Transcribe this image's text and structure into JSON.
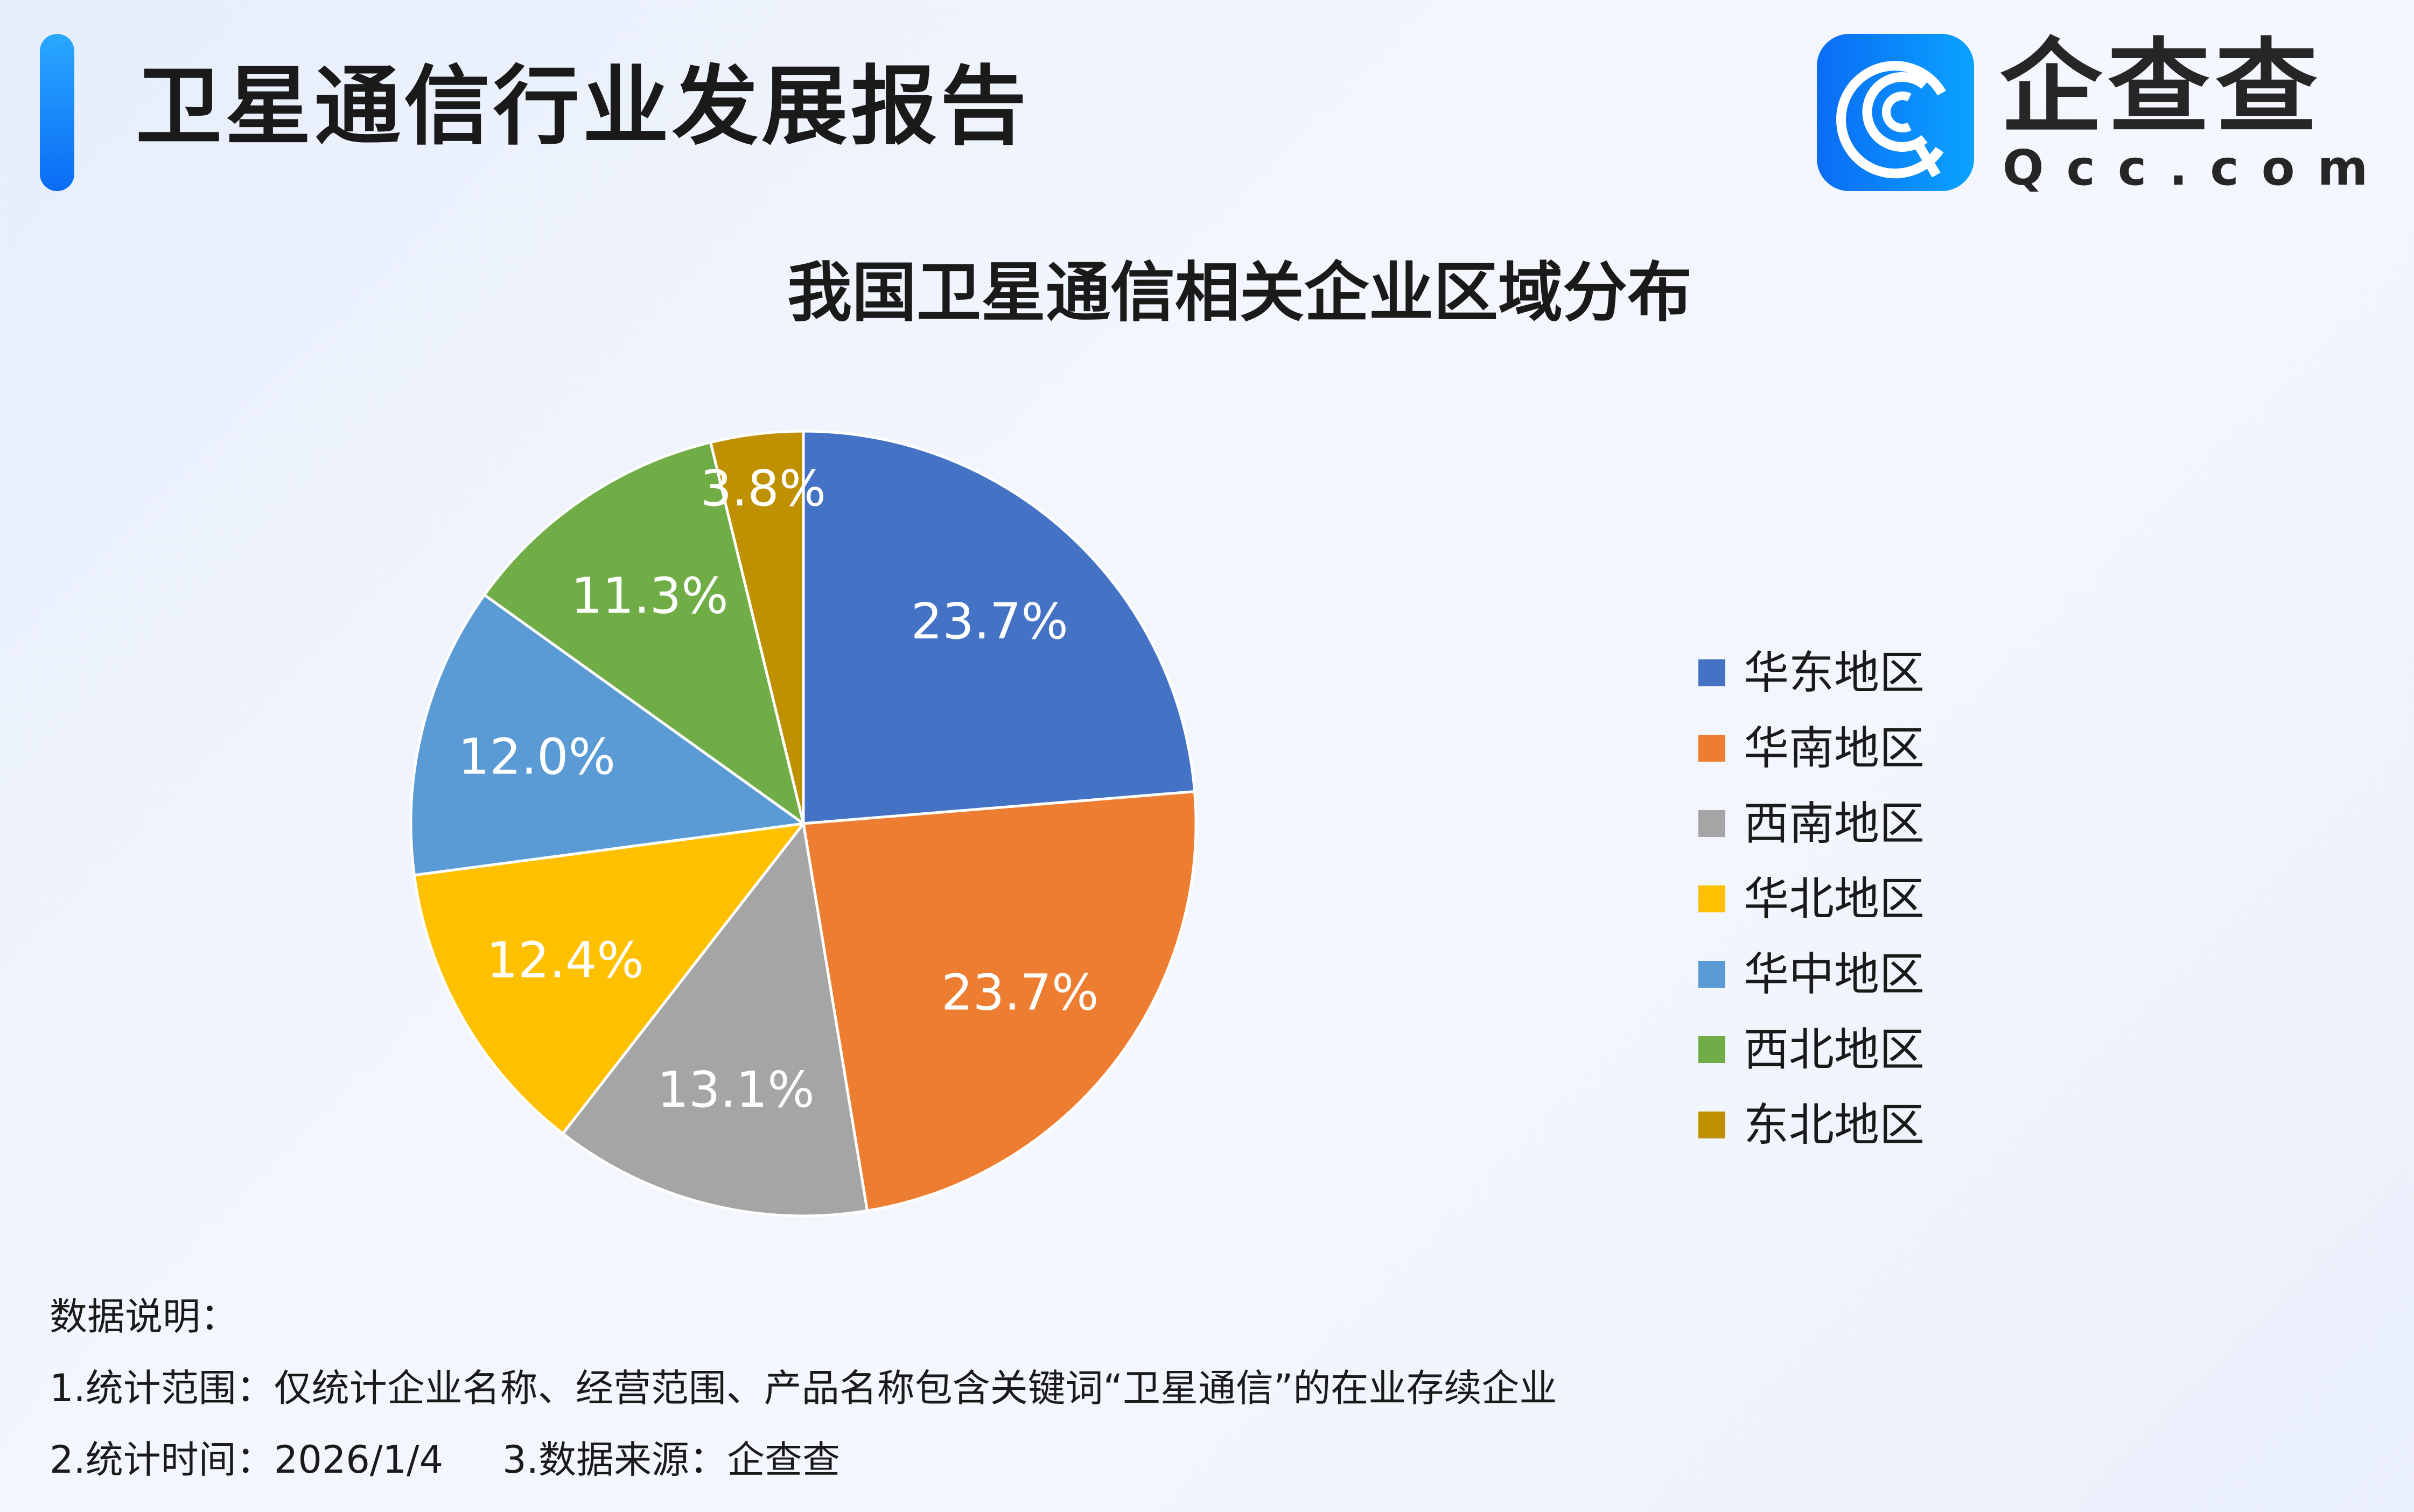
{
  "header": {
    "title": "卫星通信行业发展报告",
    "logo_cn": "企查查",
    "logo_en": "Qcc.com",
    "accent_color": "#0a6cf5"
  },
  "chart_data": {
    "type": "pie",
    "title": "我国卫星通信相关企业区域分布",
    "categories": [
      "华东地区",
      "华南地区",
      "西南地区",
      "华北地区",
      "华中地区",
      "西北地区",
      "东北地区"
    ],
    "values": [
      23.7,
      23.7,
      13.1,
      12.4,
      12.0,
      11.3,
      3.8
    ],
    "labels": [
      "23.7%",
      "23.7%",
      "13.1%",
      "12.4%",
      "12.0%",
      "11.3%",
      "3.8%"
    ],
    "colors": [
      "#4472c4",
      "#ed7d31",
      "#a5a5a5",
      "#ffc000",
      "#5b9bd5",
      "#70ad47",
      "#bf9000"
    ],
    "start_angle": "top, clockwise",
    "legend_position": "right"
  },
  "notes": {
    "heading": "数据说明：",
    "line1": "1.统计范围：仅统计企业名称、经营范围、产品名称包含关键词“卫星通信”的在业存续企业",
    "line2a": "2.统计时间：2026/1/4",
    "line2b": "3.数据来源：企查查"
  }
}
